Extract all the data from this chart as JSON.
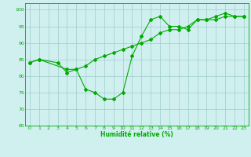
{
  "line1_x": [
    0,
    1,
    3,
    4,
    5,
    6,
    7,
    8,
    9,
    10,
    11,
    12,
    13,
    14,
    15,
    16,
    17,
    18,
    19,
    20,
    21,
    22,
    23
  ],
  "line1_y": [
    84,
    85,
    84,
    81,
    82,
    76,
    75,
    73,
    73,
    75,
    86,
    92,
    97,
    98,
    95,
    95,
    94,
    97,
    97,
    98,
    99,
    98,
    98
  ],
  "line2_x": [
    0,
    1,
    4,
    5,
    6,
    7,
    8,
    9,
    10,
    11,
    12,
    13,
    14,
    15,
    16,
    17,
    18,
    19,
    20,
    21,
    22,
    23
  ],
  "line2_y": [
    84,
    85,
    82,
    82,
    83,
    85,
    86,
    87,
    88,
    89,
    90,
    91,
    93,
    94,
    94,
    95,
    97,
    97,
    97,
    98,
    98,
    98
  ],
  "xlabel": "Humidité relative (%)",
  "ylim": [
    65,
    102
  ],
  "xlim": [
    -0.5,
    23.5
  ],
  "yticks": [
    65,
    70,
    75,
    80,
    85,
    90,
    95,
    100
  ],
  "xticks": [
    0,
    1,
    2,
    3,
    4,
    5,
    6,
    7,
    8,
    9,
    10,
    11,
    12,
    13,
    14,
    15,
    16,
    17,
    18,
    19,
    20,
    21,
    22,
    23
  ],
  "line_color": "#00aa00",
  "bg_color": "#d0f0f0",
  "grid_color": "#a0cccc",
  "marker": "D",
  "markersize": 2.0,
  "linewidth": 0.8
}
